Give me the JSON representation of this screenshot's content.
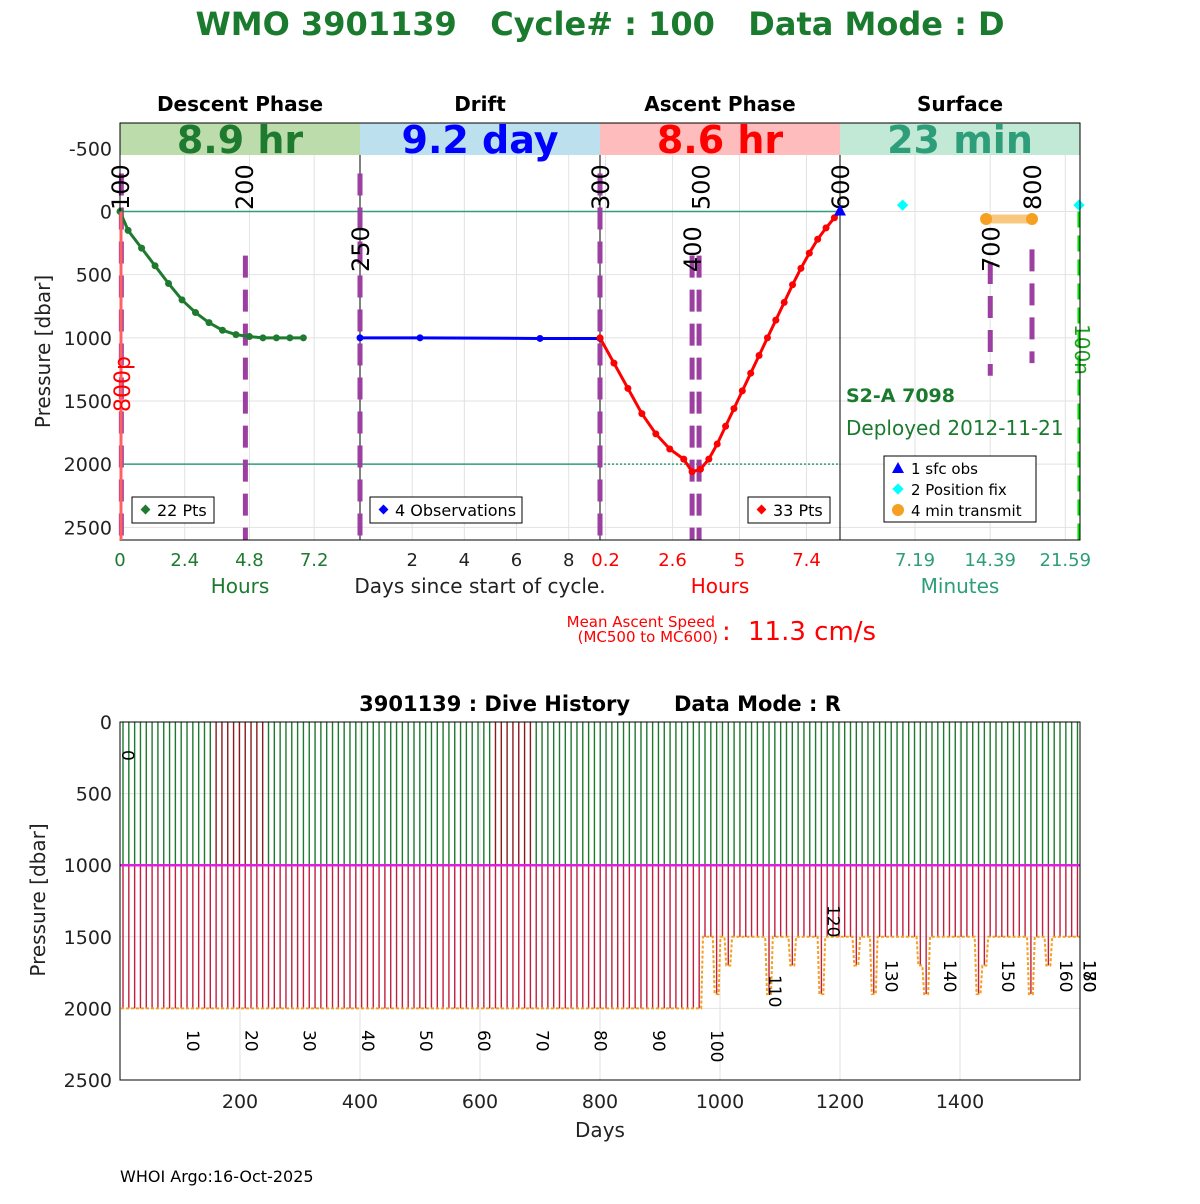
{
  "header": {
    "title": "WMO 3901139   Cycle# : 100   Data Mode : D"
  },
  "footer": {
    "credit": "WHOI Argo:16-Oct-2025"
  },
  "colors": {
    "title": "#1a7a2e",
    "descent": "#1e7a2e",
    "drift": "#0000ff",
    "ascent": "#ff0000",
    "surface": "#2e9e7a",
    "marker": "#9b3fa0",
    "transmit": "#f5a020",
    "fix": "#00ffff",
    "green_dash": "#00e000"
  },
  "chart_data": [
    {
      "type": "line",
      "ylabel": "Pressure [dbar]",
      "ylim": [
        2600,
        -700
      ],
      "yticks": [
        -500,
        0,
        500,
        1000,
        1500,
        2000,
        2500
      ],
      "ref_lines": [
        0,
        2000
      ],
      "phases": [
        {
          "name": "Descent Phase",
          "duration": "8.9 hr",
          "color": "#1e7a2e",
          "band": "#bcdcac",
          "xlabel": "Hours",
          "xlim": [
            0,
            8.9
          ],
          "xticks": [
            0,
            2.4,
            4.8,
            7.2
          ],
          "xtick_labels": [
            "0",
            "2.4",
            "4.8",
            "7.2"
          ],
          "legend": "22 Pts",
          "x": [
            0,
            0.3,
            0.8,
            1.3,
            1.8,
            2.3,
            2.8,
            3.3,
            3.8,
            4.3,
            4.8,
            5.3,
            5.8,
            6.3,
            6.8
          ],
          "y": [
            0,
            150,
            290,
            430,
            570,
            700,
            800,
            880,
            940,
            975,
            990,
            1000,
            1000,
            1000,
            1000
          ],
          "mc_labels": [
            {
              "label": "100",
              "x": 0
            },
            {
              "label": "200",
              "x": 4.6
            }
          ],
          "dash_markers": [
            {
              "x": 0.05,
              "from": -300,
              "to": 2600
            },
            {
              "x": 4.65,
              "from": 350,
              "to": 2600
            }
          ]
        },
        {
          "name": "Drift",
          "duration": "9.2 day",
          "color": "#0000ff",
          "band": "#bde0ee",
          "xlabel": "Days since start of cycle.",
          "xlim": [
            0,
            9.2
          ],
          "xticks": [
            2,
            4,
            6,
            8
          ],
          "xtick_labels": [
            "2",
            "4",
            "6",
            "8"
          ],
          "legend": "4 Observations",
          "x": [
            0,
            2.3,
            6.9,
            9.2
          ],
          "y": [
            1000,
            1000,
            1005,
            1005
          ],
          "mc_labels": [
            {
              "label": "250",
              "x": 0
            }
          ],
          "dash_markers": [
            {
              "x": 0,
              "from": -300,
              "to": 2600
            }
          ]
        },
        {
          "name": "Ascent Phase",
          "duration": "8.6 hr",
          "color": "#ff0000",
          "band": "#ffbcbc",
          "xlabel": "Hours",
          "xlim": [
            0,
            8.6
          ],
          "xticks": [
            0.2,
            2.6,
            5,
            7.4
          ],
          "xtick_labels": [
            "0.2",
            "2.6",
            "5",
            "7.4"
          ],
          "legend": "33 Pts",
          "x": [
            0,
            0.5,
            1,
            1.5,
            2,
            2.5,
            3,
            3.3,
            3.6,
            3.9,
            4.2,
            4.5,
            4.8,
            5.1,
            5.4,
            5.7,
            6,
            6.3,
            6.6,
            6.9,
            7.2,
            7.5,
            7.8,
            8.1,
            8.4,
            8.6
          ],
          "y": [
            1000,
            1200,
            1400,
            1600,
            1760,
            1880,
            1960,
            2060,
            2040,
            1960,
            1840,
            1700,
            1560,
            1420,
            1280,
            1140,
            1000,
            860,
            720,
            580,
            450,
            330,
            220,
            130,
            50,
            0
          ],
          "mc_labels": [
            {
              "label": "300",
              "x": 0
            },
            {
              "label": "400",
              "x": 3.3
            },
            {
              "label": "500",
              "x": 3.6
            },
            {
              "label": "600",
              "x": 8.6
            }
          ],
          "dash_markers": [
            {
              "x": 0,
              "from": -300,
              "to": 2600
            },
            {
              "x": 3.3,
              "from": 350,
              "to": 2600
            },
            {
              "x": 3.55,
              "from": 350,
              "to": 2600
            }
          ]
        },
        {
          "name": "Surface",
          "duration": "23 min",
          "color": "#2e9e7a",
          "band": "#c2e8d6",
          "xlabel": "Minutes",
          "xlim": [
            0,
            23
          ],
          "xticks": [
            7.19,
            14.39,
            21.59
          ],
          "xtick_labels": [
            "7.19",
            "14.39",
            "21.59"
          ],
          "mc_labels": [
            {
              "label": "700",
              "x": 14.4
            },
            {
              "label": "800",
              "x": 18.4
            }
          ],
          "dash_markers": [
            {
              "x": 14.4,
              "from": 400,
              "to": 1300
            },
            {
              "x": 18.4,
              "from": 300,
              "to": 1200
            }
          ],
          "green_dash": {
            "x": 22.9,
            "from": 0,
            "to": 2600,
            "label": "100n"
          },
          "sfc_obs": [
            {
              "x": 0,
              "y": 0
            }
          ],
          "position_fix": [
            {
              "x": 6.0,
              "y": -50
            },
            {
              "x": 22.9,
              "y": -50
            }
          ],
          "transmit": {
            "x": [
              14.0,
              18.4
            ],
            "y": 60
          },
          "legend": [
            "1 sfc obs",
            "2 Position fix",
            "4 min transmit"
          ],
          "float_label": "S2-A 7098",
          "deployed": "Deployed 2012-11-21"
        }
      ],
      "ascent_speed": {
        "label_line1": "Mean Ascent Speed",
        "label_line2": "(MC500 to MC600)",
        "separator": ":",
        "value": "11.3 cm/s"
      },
      "left_annotation": "800p"
    },
    {
      "type": "bar",
      "title": "3901139 : Dive History      Data Mode : R",
      "xlabel": "Days",
      "ylabel": "Pressure [dbar]",
      "xlim": [
        0,
        1600
      ],
      "ylim": [
        2500,
        0
      ],
      "xticks": [
        200,
        400,
        600,
        800,
        1000,
        1200,
        1400
      ],
      "yticks": [
        0,
        500,
        1000,
        1500,
        2000,
        2500
      ],
      "cycle_interval_days": 9.7,
      "cycle_count": 165,
      "drift_depth": 1000,
      "profile_depth_early": 2000,
      "profile_depth_late": 1500,
      "cycle_labels": [
        {
          "label": "0",
          "cycle": 0
        },
        {
          "label": "10",
          "cycle": 10
        },
        {
          "label": "20",
          "cycle": 20
        },
        {
          "label": "30",
          "cycle": 30
        },
        {
          "label": "40",
          "cycle": 40
        },
        {
          "label": "50",
          "cycle": 50
        },
        {
          "label": "60",
          "cycle": 60
        },
        {
          "label": "70",
          "cycle": 70
        },
        {
          "label": "80",
          "cycle": 80
        },
        {
          "label": "90",
          "cycle": 90
        },
        {
          "label": "100",
          "cycle": 100
        },
        {
          "label": "110",
          "cycle": 110
        },
        {
          "label": "120",
          "cycle": 120
        },
        {
          "label": "130",
          "cycle": 130
        },
        {
          "label": "140",
          "cycle": 140
        },
        {
          "label": "150",
          "cycle": 150
        },
        {
          "label": "160",
          "cycle": 160
        },
        {
          "label": "170",
          "cycle": 170
        },
        {
          "label": "180",
          "cycle": 180
        }
      ]
    }
  ]
}
